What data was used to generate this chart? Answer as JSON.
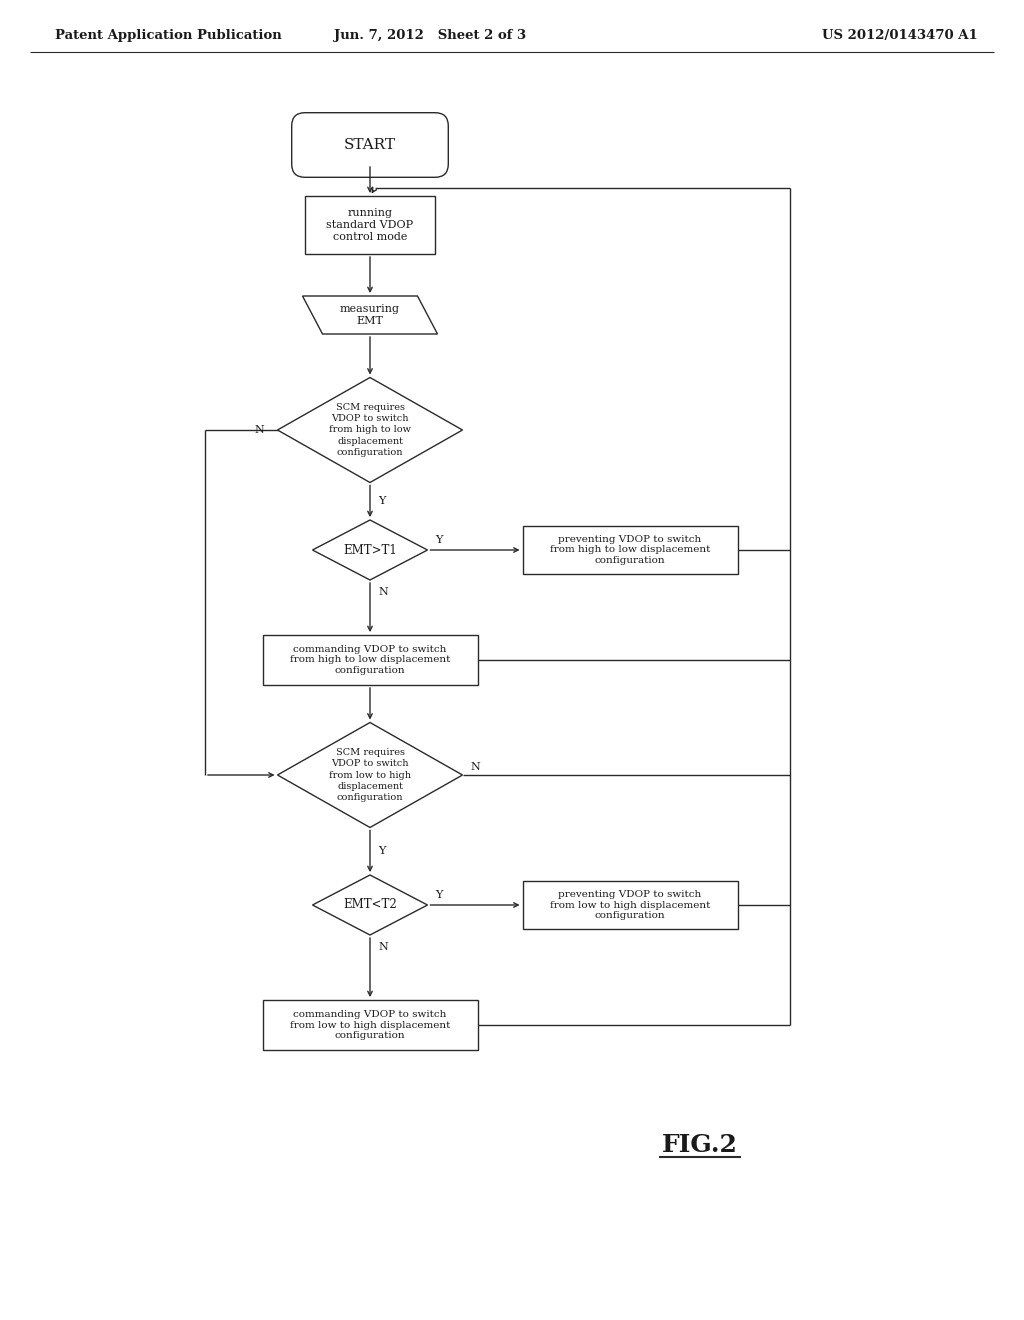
{
  "title_left": "Patent Application Publication",
  "title_center": "Jun. 7, 2012   Sheet 2 of 3",
  "title_right": "US 2012/0143470 A1",
  "fig_label": "FIG.2",
  "bg_color": "#ffffff",
  "line_color": "#2a2a2a",
  "text_color": "#1a1a1a"
}
